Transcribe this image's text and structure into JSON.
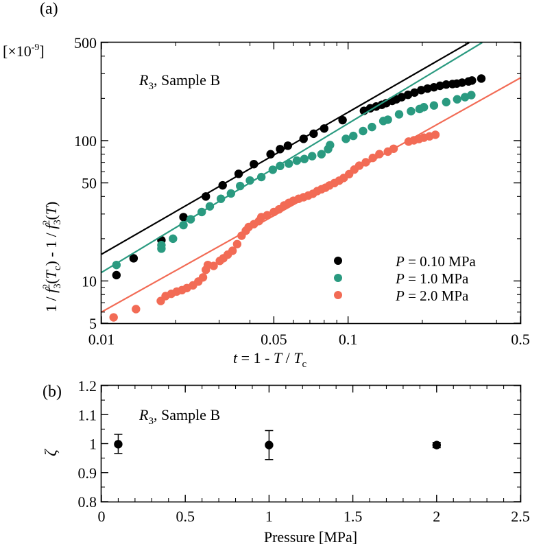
{
  "chart_data": [
    {
      "panel_label": "(a)",
      "type": "scatter",
      "multiplier": "[×10",
      "multiplier_exp": "-9",
      "multiplier_close": "]",
      "annotation_main": "R",
      "annotation_sub": "3",
      "annotation_rest": ", Sample B",
      "xscale": "log",
      "yscale": "log",
      "xlim": [
        0.01,
        0.5
      ],
      "ylim": [
        5,
        500
      ],
      "xticks": [
        {
          "value": 0.01,
          "label": "0.01"
        },
        {
          "value": 0.05,
          "label": "0.05"
        },
        {
          "value": 0.1,
          "label": "0.1"
        },
        {
          "value": 0.5,
          "label": "0.5"
        }
      ],
      "yticks": [
        {
          "value": 5,
          "label": "5"
        },
        {
          "value": 10,
          "label": "10"
        },
        {
          "value": 50,
          "label": "50"
        },
        {
          "value": 100,
          "label": "100"
        },
        {
          "value": 500,
          "label": "500"
        }
      ],
      "xlabel": {
        "a": "t",
        "b": " = 1 - ",
        "c": "T",
        "d": " / ",
        "e": "T",
        "f": "c"
      },
      "ylabel": {
        "a": "1 / ",
        "b": "f",
        "c": "3",
        "d": "2",
        "e": "(",
        "f": "T",
        "g": "c",
        "h": ") - 1 / ",
        "i": "f",
        "j": "3",
        "k": "2",
        "l": "(",
        "m": "T",
        "n": ")"
      },
      "legend_position": "bottom-right",
      "series": [
        {
          "name": "P = 0.10 MPa",
          "legend_var": "P",
          "legend_rest": " = 0.10 MPa",
          "color": "#000000",
          "fit": {
            "x": [
              0.01,
              0.31
            ],
            "y": [
              15.5,
              500
            ]
          },
          "points": [
            [
              0.0115,
              11
            ],
            [
              0.0135,
              14.5
            ],
            [
              0.0175,
              19.5
            ],
            [
              0.0215,
              28.5
            ],
            [
              0.0265,
              40
            ],
            [
              0.031,
              48
            ],
            [
              0.036,
              58
            ],
            [
              0.0415,
              68
            ],
            [
              0.0485,
              80
            ],
            [
              0.053,
              87
            ],
            [
              0.057,
              92
            ],
            [
              0.066,
              103
            ],
            [
              0.0725,
              112
            ],
            [
              0.08,
              122
            ],
            [
              0.095,
              140
            ],
            [
              0.116,
              163
            ],
            [
              0.123,
              170
            ],
            [
              0.13,
              175
            ],
            [
              0.137,
              180
            ],
            [
              0.143,
              185
            ],
            [
              0.151,
              192
            ],
            [
              0.157,
              197
            ],
            [
              0.165,
              204
            ],
            [
              0.175,
              212
            ],
            [
              0.186,
              220
            ],
            [
              0.198,
              229
            ],
            [
              0.21,
              235
            ],
            [
              0.223,
              240
            ],
            [
              0.236,
              246
            ],
            [
              0.25,
              251
            ],
            [
              0.265,
              253
            ],
            [
              0.276,
              255
            ],
            [
              0.29,
              259
            ],
            [
              0.308,
              264
            ],
            [
              0.318,
              268
            ],
            [
              0.347,
              277
            ]
          ]
        },
        {
          "name": "P = 1.0 MPa",
          "legend_var": "P",
          "legend_rest": " = 1.0 MPa",
          "color": "#2a9a80",
          "fit": {
            "x": [
              0.01,
              0.35
            ],
            "y": [
              11.5,
              500
            ]
          },
          "points": [
            [
              0.0115,
              13
            ],
            [
              0.0175,
              17
            ],
            [
              0.0175,
              18
            ],
            [
              0.0195,
              20
            ],
            [
              0.0215,
              25
            ],
            [
              0.023,
              27.5
            ],
            [
              0.0255,
              31
            ],
            [
              0.0275,
              34
            ],
            [
              0.0305,
              38.5
            ],
            [
              0.0335,
              42
            ],
            [
              0.0365,
              47.5
            ],
            [
              0.04,
              52
            ],
            [
              0.0445,
              55
            ],
            [
              0.0495,
              62
            ],
            [
              0.053,
              66
            ],
            [
              0.0575,
              68.5
            ],
            [
              0.062,
              72
            ],
            [
              0.0665,
              74
            ],
            [
              0.0715,
              77.5
            ],
            [
              0.078,
              80
            ],
            [
              0.083,
              87
            ],
            [
              0.0845,
              93
            ],
            [
              0.098,
              103
            ],
            [
              0.105,
              108
            ],
            [
              0.115,
              117
            ],
            [
              0.125,
              125
            ],
            [
              0.139,
              138
            ],
            [
              0.145,
              141
            ],
            [
              0.161,
              154
            ],
            [
              0.18,
              162
            ],
            [
              0.195,
              168
            ],
            [
              0.203,
              173
            ],
            [
              0.223,
              178
            ],
            [
              0.25,
              188
            ],
            [
              0.277,
              197
            ],
            [
              0.298,
              204
            ],
            [
              0.316,
              211
            ]
          ]
        },
        {
          "name": "P = 2.0 MPa",
          "legend_var": "P",
          "legend_rest": " = 2.0 MPa",
          "color": "#f26b55",
          "fit": {
            "x": [
              0.01,
              0.5
            ],
            "y": [
              6,
              280
            ]
          },
          "points": [
            [
              0.0112,
              5.5
            ],
            [
              0.0138,
              6.3
            ],
            [
              0.0174,
              7.2
            ],
            [
              0.0182,
              7.8
            ],
            [
              0.0192,
              8.1
            ],
            [
              0.0202,
              8.4
            ],
            [
              0.0212,
              8.6
            ],
            [
              0.0222,
              8.9
            ],
            [
              0.0235,
              9.3
            ],
            [
              0.0247,
              9.9
            ],
            [
              0.0258,
              10.6
            ],
            [
              0.0265,
              12
            ],
            [
              0.027,
              13
            ],
            [
              0.0285,
              12.8
            ],
            [
              0.0302,
              13.9
            ],
            [
              0.0312,
              14.5
            ],
            [
              0.0325,
              15.4
            ],
            [
              0.034,
              16.4
            ],
            [
              0.0355,
              18.3
            ],
            [
              0.037,
              21
            ],
            [
              0.0385,
              22.8
            ],
            [
              0.0395,
              24.2
            ],
            [
              0.0415,
              25.4
            ],
            [
              0.0435,
              26.7
            ],
            [
              0.0445,
              28.5
            ],
            [
              0.047,
              29.4
            ],
            [
              0.05,
              31
            ],
            [
              0.0525,
              32.4
            ],
            [
              0.055,
              34.5
            ],
            [
              0.0575,
              36
            ],
            [
              0.06,
              37.3
            ],
            [
              0.063,
              38.5
            ],
            [
              0.066,
              39.5
            ],
            [
              0.069,
              40.6
            ],
            [
              0.072,
              41.8
            ],
            [
              0.075,
              43.7
            ],
            [
              0.078,
              45
            ],
            [
              0.081,
              46.2
            ],
            [
              0.084,
              47.9
            ],
            [
              0.088,
              49.8
            ],
            [
              0.092,
              51.8
            ],
            [
              0.096,
              54.2
            ],
            [
              0.101,
              57.7
            ],
            [
              0.106,
              62.2
            ],
            [
              0.111,
              66.3
            ],
            [
              0.118,
              70.1
            ],
            [
              0.126,
              75.3
            ],
            [
              0.134,
              80.2
            ],
            [
              0.145,
              83.5
            ],
            [
              0.153,
              87.5
            ],
            [
              0.176,
              98.4
            ],
            [
              0.185,
              100.5
            ],
            [
              0.194,
              102.7
            ],
            [
              0.203,
              105
            ],
            [
              0.214,
              107.3
            ],
            [
              0.226,
              110.1
            ]
          ]
        }
      ]
    },
    {
      "panel_label": "(b)",
      "type": "scatter",
      "annotation_main": "R",
      "annotation_sub": "3",
      "annotation_rest": ", Sample B",
      "xlim": [
        0,
        2.5
      ],
      "ylim": [
        0.8,
        1.2
      ],
      "xticks": [
        {
          "value": 0,
          "label": "0"
        },
        {
          "value": 0.5,
          "label": "0.5"
        },
        {
          "value": 1,
          "label": "1"
        },
        {
          "value": 1.5,
          "label": "1.5"
        },
        {
          "value": 2,
          "label": "2"
        },
        {
          "value": 2.5,
          "label": "2.5"
        }
      ],
      "yticks": [
        {
          "value": 0.8,
          "label": "0.8"
        },
        {
          "value": 0.9,
          "label": "0.9"
        },
        {
          "value": 1.0,
          "label": "1"
        },
        {
          "value": 1.1,
          "label": "1.1"
        },
        {
          "value": 1.2,
          "label": "1.2"
        }
      ],
      "xlabel": "Pressure [MPa]",
      "ylabel": "ζ",
      "color": "#000000",
      "points": [
        {
          "x": 0.1,
          "y": 0.998,
          "yerr_low": 0.966,
          "yerr_high": 1.032
        },
        {
          "x": 1.0,
          "y": 0.995,
          "yerr_low": 0.945,
          "yerr_high": 1.045
        },
        {
          "x": 2.0,
          "y": 0.995,
          "yerr_low": 0.986,
          "yerr_high": 1.004
        }
      ]
    }
  ]
}
